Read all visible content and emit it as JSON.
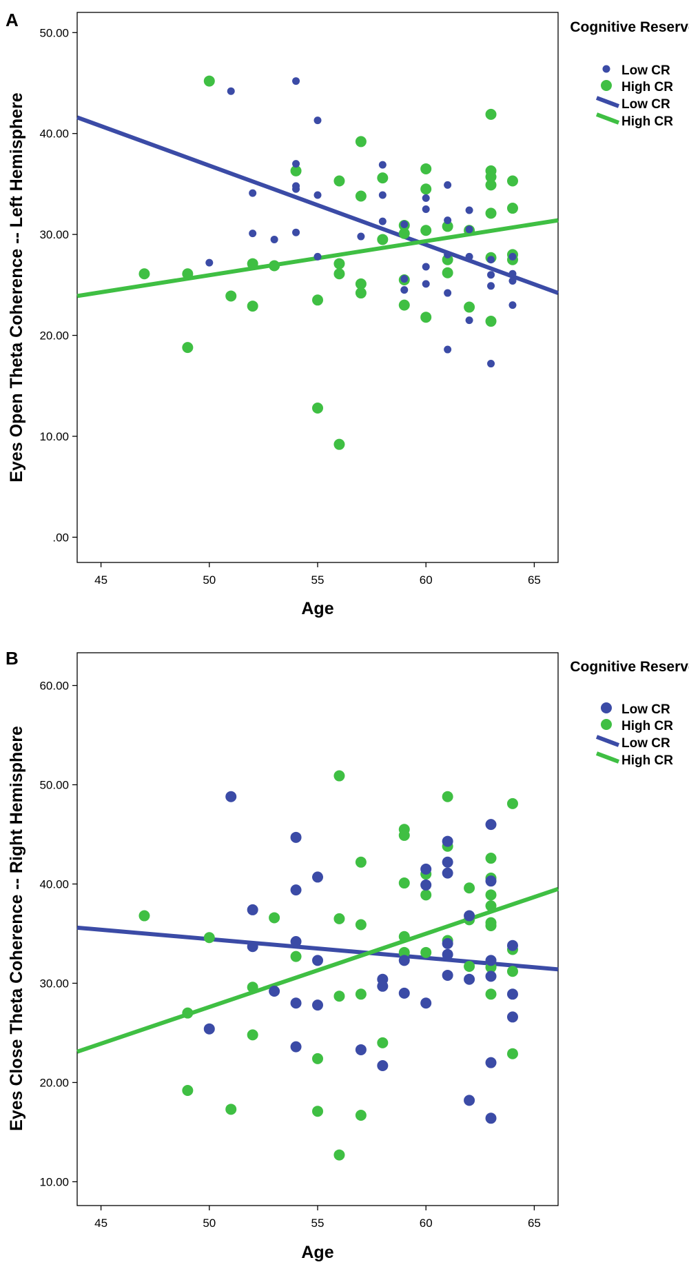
{
  "colors": {
    "low": "#3b4ba6",
    "high": "#3fbf43",
    "axis": "#000000"
  },
  "chart_data": [
    {
      "panel_label": "A",
      "type": "scatter",
      "title": "",
      "xlabel": "Age",
      "ylabel": "Eyes Open Theta Coherence -- Left Hemisphere",
      "xlim": [
        43.9,
        66.1
      ],
      "ylim": [
        -2.5,
        52.0
      ],
      "xticks": [
        45,
        50,
        55,
        60,
        65
      ],
      "xtick_labels": [
        "45",
        "50",
        "55",
        "60",
        "65"
      ],
      "yticks": [
        0,
        10,
        20,
        30,
        40,
        50
      ],
      "ytick_labels": [
        ".00",
        "10.00",
        "20.00",
        "30.00",
        "40.00",
        "50.00"
      ],
      "legend": {
        "title": "Cognitive Reserve",
        "position": "top-right",
        "items": [
          {
            "label": "Low CR",
            "kind": "marker",
            "series": "low"
          },
          {
            "label": "High CR",
            "kind": "marker",
            "series": "high"
          },
          {
            "label": "Low CR",
            "kind": "line",
            "series": "low"
          },
          {
            "label": "High CR",
            "kind": "line",
            "series": "high"
          }
        ]
      },
      "series": [
        {
          "name": "Low CR",
          "key": "low",
          "marker_size": "small",
          "points": [
            [
              51,
              44.2
            ],
            [
              54,
              45.2
            ],
            [
              55,
              41.3
            ],
            [
              54,
              37.0
            ],
            [
              54,
              34.8
            ],
            [
              54,
              34.5
            ],
            [
              52,
              34.1
            ],
            [
              55,
              33.9
            ],
            [
              58,
              36.9
            ],
            [
              58,
              33.9
            ],
            [
              57,
              29.8
            ],
            [
              53,
              29.5
            ],
            [
              52,
              30.1
            ],
            [
              54,
              30.2
            ],
            [
              50,
              27.2
            ],
            [
              55,
              27.8
            ],
            [
              58,
              31.3
            ],
            [
              59,
              31.0
            ],
            [
              60,
              33.6
            ],
            [
              60,
              32.5
            ],
            [
              60,
              26.8
            ],
            [
              59,
              25.6
            ],
            [
              59,
              24.5
            ],
            [
              60,
              25.1
            ],
            [
              61,
              34.9
            ],
            [
              61,
              31.4
            ],
            [
              61,
              28.0
            ],
            [
              61,
              24.2
            ],
            [
              61,
              18.6
            ],
            [
              62,
              32.4
            ],
            [
              62,
              30.5
            ],
            [
              62,
              27.8
            ],
            [
              62,
              21.5
            ],
            [
              63,
              27.5
            ],
            [
              63,
              26.0
            ],
            [
              63,
              24.9
            ],
            [
              63,
              17.2
            ],
            [
              64,
              27.8
            ],
            [
              64,
              26.1
            ],
            [
              64,
              25.4
            ],
            [
              64,
              23.0
            ]
          ]
        },
        {
          "name": "High CR",
          "key": "high",
          "marker_size": "large",
          "points": [
            [
              47,
              26.1
            ],
            [
              49,
              26.1
            ],
            [
              49,
              18.8
            ],
            [
              50,
              45.2
            ],
            [
              51,
              23.9
            ],
            [
              52,
              27.1
            ],
            [
              52,
              22.9
            ],
            [
              53,
              26.9
            ],
            [
              54,
              36.3
            ],
            [
              55,
              23.5
            ],
            [
              55,
              12.8
            ],
            [
              56,
              35.3
            ],
            [
              56,
              27.1
            ],
            [
              56,
              26.1
            ],
            [
              56,
              9.2
            ],
            [
              57,
              39.2
            ],
            [
              57,
              33.8
            ],
            [
              57,
              25.1
            ],
            [
              57,
              24.2
            ],
            [
              58,
              35.6
            ],
            [
              58,
              29.5
            ],
            [
              59,
              30.9
            ],
            [
              59,
              30.1
            ],
            [
              59,
              25.5
            ],
            [
              59,
              23.0
            ],
            [
              60,
              36.5
            ],
            [
              60,
              34.5
            ],
            [
              60,
              30.4
            ],
            [
              60,
              21.8
            ],
            [
              61,
              30.8
            ],
            [
              61,
              27.5
            ],
            [
              61,
              26.2
            ],
            [
              62,
              30.4
            ],
            [
              62,
              22.8
            ],
            [
              63,
              41.9
            ],
            [
              63,
              36.3
            ],
            [
              63,
              35.7
            ],
            [
              63,
              34.9
            ],
            [
              63,
              32.1
            ],
            [
              63,
              27.7
            ],
            [
              63,
              21.4
            ],
            [
              64,
              35.3
            ],
            [
              64,
              32.6
            ],
            [
              64,
              28.0
            ],
            [
              64,
              27.5
            ]
          ]
        }
      ],
      "fit_lines": [
        {
          "name": "Low CR",
          "key": "low",
          "x": [
            43.9,
            66.1
          ],
          "y": [
            41.6,
            24.2
          ]
        },
        {
          "name": "High CR",
          "key": "high",
          "x": [
            43.9,
            66.1
          ],
          "y": [
            23.9,
            31.4
          ]
        }
      ]
    },
    {
      "panel_label": "B",
      "type": "scatter",
      "title": "",
      "xlabel": "Age",
      "ylabel": "Eyes Close Theta Coherence -- Right Hemisphere",
      "xlim": [
        43.9,
        66.1
      ],
      "ylim": [
        7.6,
        63.3
      ],
      "xticks": [
        45,
        50,
        55,
        60,
        65
      ],
      "xtick_labels": [
        "45",
        "50",
        "55",
        "60",
        "65"
      ],
      "yticks": [
        10,
        20,
        30,
        40,
        50,
        60
      ],
      "ytick_labels": [
        "10.00",
        "20.00",
        "30.00",
        "40.00",
        "50.00",
        "60.00"
      ],
      "legend": {
        "title": "Cognitive Reserve",
        "position": "top-right",
        "items": [
          {
            "label": "Low CR",
            "kind": "marker",
            "series": "low"
          },
          {
            "label": "High CR",
            "kind": "marker",
            "series": "high"
          },
          {
            "label": "Low CR",
            "kind": "line",
            "series": "low"
          },
          {
            "label": "High CR",
            "kind": "line",
            "series": "high"
          }
        ]
      },
      "series": [
        {
          "name": "Low CR",
          "key": "low",
          "marker_size": "large",
          "points": [
            [
              50,
              25.4
            ],
            [
              51,
              48.8
            ],
            [
              52,
              37.4
            ],
            [
              52,
              33.7
            ],
            [
              53,
              29.2
            ],
            [
              54,
              44.7
            ],
            [
              54,
              39.4
            ],
            [
              54,
              34.2
            ],
            [
              54,
              28.0
            ],
            [
              54,
              23.6
            ],
            [
              55,
              40.7
            ],
            [
              55,
              32.3
            ],
            [
              55,
              27.8
            ],
            [
              57,
              23.3
            ],
            [
              58,
              30.4
            ],
            [
              58,
              29.7
            ],
            [
              58,
              21.7
            ],
            [
              59,
              32.3
            ],
            [
              59,
              29.0
            ],
            [
              60,
              41.5
            ],
            [
              60,
              39.9
            ],
            [
              60,
              28.0
            ],
            [
              61,
              44.3
            ],
            [
              61,
              42.2
            ],
            [
              61,
              41.1
            ],
            [
              61,
              34.0
            ],
            [
              61,
              32.9
            ],
            [
              61,
              30.8
            ],
            [
              62,
              36.8
            ],
            [
              62,
              30.4
            ],
            [
              62,
              18.2
            ],
            [
              63,
              46.0
            ],
            [
              63,
              40.3
            ],
            [
              63,
              32.3
            ],
            [
              63,
              30.7
            ],
            [
              63,
              22.0
            ],
            [
              63,
              16.4
            ],
            [
              64,
              33.8
            ],
            [
              64,
              28.9
            ],
            [
              64,
              26.6
            ]
          ]
        },
        {
          "name": "High CR",
          "key": "high",
          "marker_size": "large",
          "points": [
            [
              47,
              36.8
            ],
            [
              49,
              27.0
            ],
            [
              49,
              19.2
            ],
            [
              50,
              34.6
            ],
            [
              51,
              17.3
            ],
            [
              52,
              29.6
            ],
            [
              52,
              24.8
            ],
            [
              53,
              36.6
            ],
            [
              54,
              32.7
            ],
            [
              55,
              22.4
            ],
            [
              55,
              17.1
            ],
            [
              56,
              50.9
            ],
            [
              56,
              36.5
            ],
            [
              56,
              28.7
            ],
            [
              56,
              12.7
            ],
            [
              57,
              42.2
            ],
            [
              57,
              35.9
            ],
            [
              57,
              28.9
            ],
            [
              57,
              16.7
            ],
            [
              58,
              24.0
            ],
            [
              59,
              45.5
            ],
            [
              59,
              44.9
            ],
            [
              59,
              40.1
            ],
            [
              59,
              34.7
            ],
            [
              59,
              33.1
            ],
            [
              60,
              41.0
            ],
            [
              60,
              38.9
            ],
            [
              60,
              33.1
            ],
            [
              61,
              48.8
            ],
            [
              61,
              43.8
            ],
            [
              61,
              34.3
            ],
            [
              62,
              39.6
            ],
            [
              62,
              36.4
            ],
            [
              62,
              31.7
            ],
            [
              63,
              42.6
            ],
            [
              63,
              40.6
            ],
            [
              63,
              38.9
            ],
            [
              63,
              37.8
            ],
            [
              63,
              36.1
            ],
            [
              63,
              35.8
            ],
            [
              63,
              31.6
            ],
            [
              63,
              28.9
            ],
            [
              64,
              48.1
            ],
            [
              64,
              33.4
            ],
            [
              64,
              31.2
            ],
            [
              64,
              22.9
            ]
          ]
        }
      ],
      "fit_lines": [
        {
          "name": "Low CR",
          "key": "low",
          "x": [
            43.9,
            66.1
          ],
          "y": [
            35.6,
            31.4
          ]
        },
        {
          "name": "High CR",
          "key": "high",
          "x": [
            43.9,
            66.1
          ],
          "y": [
            23.1,
            39.5
          ]
        }
      ]
    }
  ]
}
